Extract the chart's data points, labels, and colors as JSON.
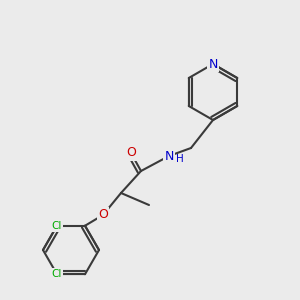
{
  "bg_color": "#ebebeb",
  "bond_color": "#3a3a3a",
  "bond_lw": 1.5,
  "atom_colors": {
    "N": "#0000cc",
    "O": "#cc0000",
    "Cl": "#00aa00",
    "C": "#3a3a3a"
  },
  "font_size": 9,
  "font_size_small": 7.5
}
